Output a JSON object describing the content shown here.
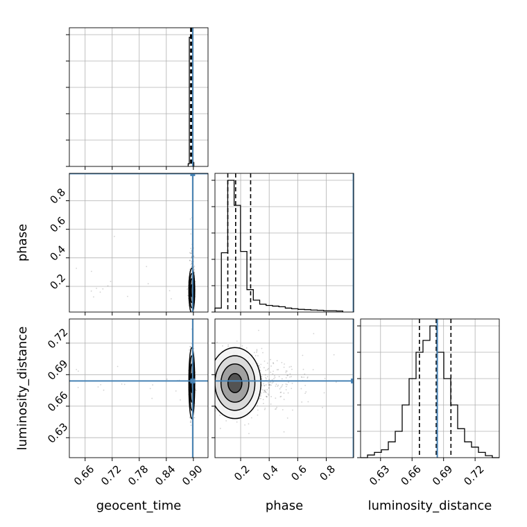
{
  "chart_data": {
    "type": "corner",
    "parameters": [
      "geocent_time",
      "phase",
      "luminosity_distance"
    ],
    "axes": {
      "geocent_time": {
        "label": "geocent_time",
        "range": [
          0.625,
          0.9325
        ],
        "ticks": [
          0.66,
          0.72,
          0.78,
          0.84,
          0.9
        ],
        "tick_labels": [
          "0.66",
          "0.72",
          "0.78",
          "0.84",
          "0.90"
        ]
      },
      "phase": {
        "label": "phase",
        "range": [
          0.02,
          0.992
        ],
        "ticks": [
          0.2,
          0.4,
          0.6,
          0.8
        ],
        "tick_labels": [
          "0.2",
          "0.4",
          "0.6",
          "0.8"
        ]
      },
      "luminosity_distance": {
        "label": "luminosity_distance",
        "range": [
          0.611,
          0.743
        ],
        "ticks": [
          0.63,
          0.66,
          0.69,
          0.72
        ],
        "tick_labels": [
          "0.63",
          "0.66",
          "0.69",
          "0.72"
        ]
      }
    },
    "truth": {
      "color": "#4682b4",
      "values": {
        "geocent_time": 0.8985,
        "phase": 0.99,
        "luminosity_distance": 0.684
      }
    },
    "histograms": {
      "geocent_time": {
        "bin_edges": [
          0.8885,
          0.891,
          0.8935,
          0.896,
          0.8985,
          0.901
        ],
        "counts": [
          0.02,
          0.98,
          1.0,
          0.97,
          0.03
        ],
        "quantiles": [
          0.894,
          0.8955,
          0.897
        ]
      },
      "phase": {
        "bin_edges": [
          0.02,
          0.0648,
          0.1096,
          0.1544,
          0.1992,
          0.244,
          0.2888,
          0.3336,
          0.3784,
          0.4232,
          0.468,
          0.5128,
          0.5576,
          0.6024,
          0.6472,
          0.692,
          0.7368,
          0.7816,
          0.8264,
          0.8712,
          0.916
        ],
        "counts": [
          0.03,
          0.45,
          1.0,
          0.81,
          0.46,
          0.17,
          0.09,
          0.06,
          0.05,
          0.045,
          0.04,
          0.03,
          0.025,
          0.02,
          0.018,
          0.015,
          0.013,
          0.01,
          0.01,
          0.008
        ],
        "quantiles": [
          0.11,
          0.165,
          0.27
        ]
      },
      "luminosity_distance": {
        "bin_edges": [
          0.611,
          0.6176,
          0.6242,
          0.6308,
          0.6374,
          0.644,
          0.6506,
          0.6572,
          0.6638,
          0.6704,
          0.677,
          0.6836,
          0.6902,
          0.6968,
          0.7034,
          0.71,
          0.7166,
          0.7232,
          0.7298,
          0.7364,
          0.743
        ],
        "counts": [
          0.0,
          0.02,
          0.04,
          0.06,
          0.12,
          0.2,
          0.4,
          0.6,
          0.8,
          0.89,
          1.0,
          0.8,
          0.6,
          0.4,
          0.22,
          0.12,
          0.08,
          0.04,
          0.015,
          0.0
        ],
        "quantiles": [
          0.667,
          0.683,
          0.697
        ]
      }
    },
    "density_2d": [
      {
        "x": "geocent_time",
        "y": "phase",
        "x_center": 0.8965,
        "x_sigma": 0.0025,
        "y_center": 0.17,
        "y_sigma": 0.06,
        "y_skew_tail": 0.8
      },
      {
        "x": "geocent_time",
        "y": "luminosity_distance",
        "x_center": 0.8965,
        "x_sigma": 0.0025,
        "y_center": 0.682,
        "y_sigma": 0.013
      },
      {
        "x": "phase",
        "y": "luminosity_distance",
        "x_center": 0.16,
        "x_sigma": 0.07,
        "y_center": 0.682,
        "y_sigma": 0.013,
        "x_skew_tail": 0.9
      }
    ],
    "grid": true
  }
}
